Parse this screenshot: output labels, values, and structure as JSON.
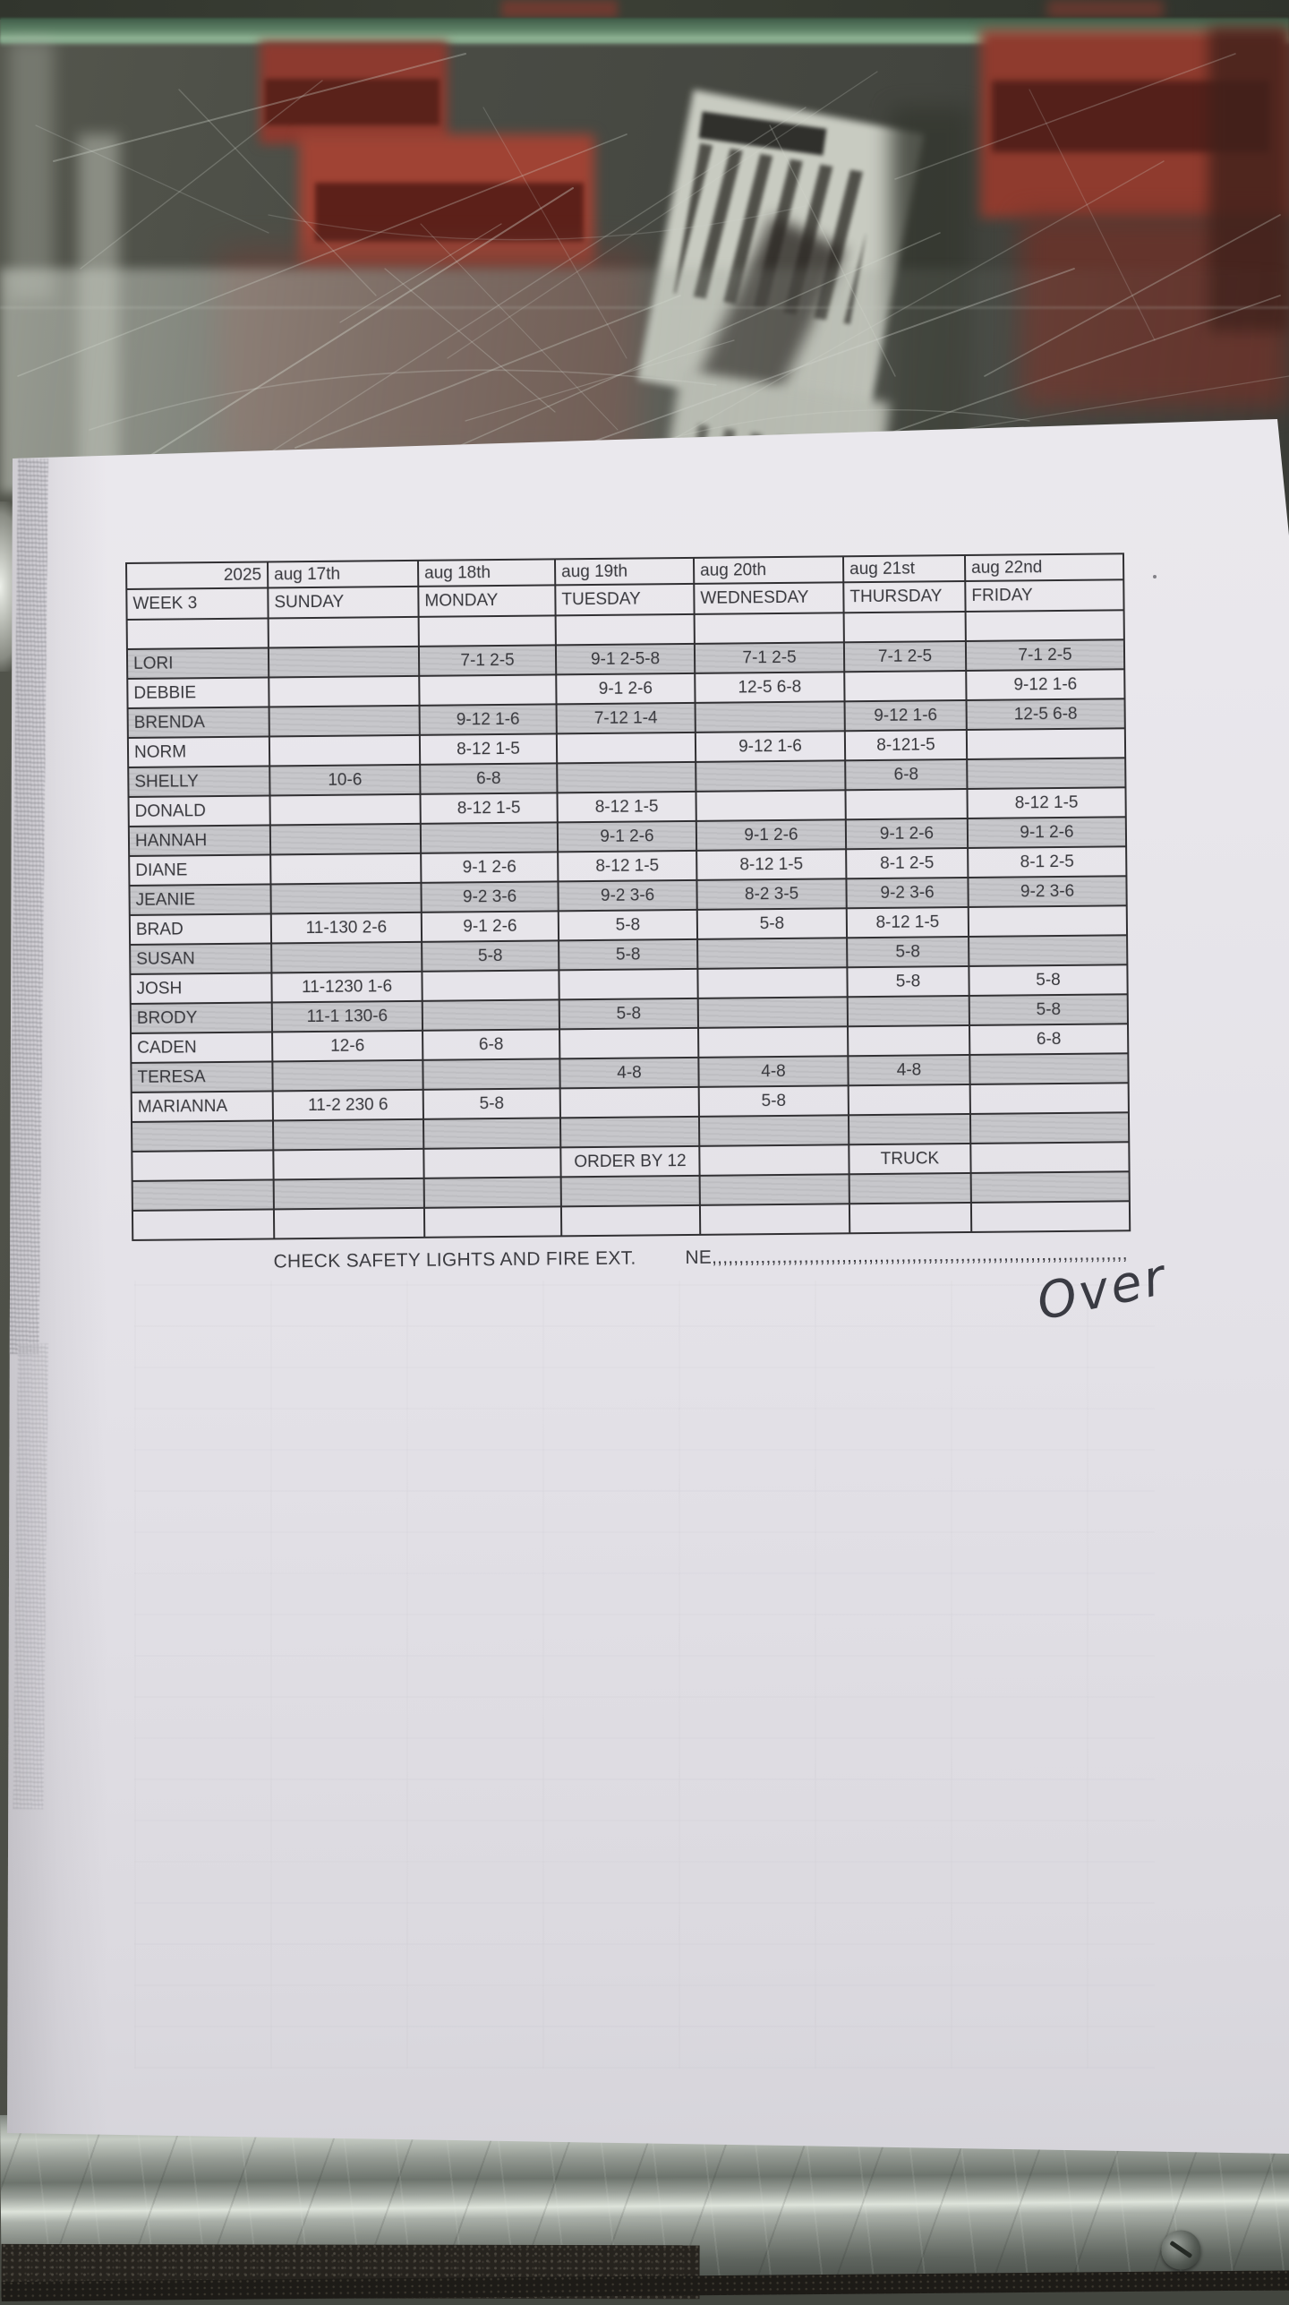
{
  "photo": {
    "handwriting": "Over",
    "colors": {
      "paper": "#e9e7ec",
      "shaded_row": "#c7c7cb",
      "red_box": "#8f3b2e",
      "glass": "#4a4c45",
      "ink": "#37373c"
    }
  },
  "table": {
    "header_row1": [
      "2025",
      "aug 17th",
      "aug 18th",
      "aug 19th",
      "aug 20th",
      "aug 21st",
      "aug 22nd"
    ],
    "header_row2": [
      "WEEK 3",
      "SUNDAY",
      "MONDAY",
      "TUESDAY",
      "WEDNESDAY",
      "THURSDAY",
      "FRIDAY"
    ],
    "rows": [
      {
        "name": "",
        "shaded": false,
        "cells": [
          "",
          "",
          "",
          "",
          "",
          ""
        ]
      },
      {
        "name": "LORI",
        "shaded": true,
        "cells": [
          "",
          "7-1 2-5",
          "9-1 2-5-8",
          "7-1 2-5",
          "7-1 2-5",
          "7-1 2-5"
        ]
      },
      {
        "name": "DEBBIE",
        "shaded": false,
        "cells": [
          "",
          "",
          "9-1 2-6",
          "12-5 6-8",
          "",
          "9-12 1-6"
        ]
      },
      {
        "name": "BRENDA",
        "shaded": true,
        "cells": [
          "",
          "9-12 1-6",
          "7-12 1-4",
          "",
          "9-12 1-6",
          "12-5 6-8"
        ]
      },
      {
        "name": "NORM",
        "shaded": false,
        "cells": [
          "",
          "8-12 1-5",
          "",
          "9-12 1-6",
          "8-121-5",
          ""
        ]
      },
      {
        "name": "SHELLY",
        "shaded": true,
        "cells": [
          "10-6",
          "6-8",
          "",
          "",
          "6-8",
          ""
        ]
      },
      {
        "name": "DONALD",
        "shaded": false,
        "cells": [
          "",
          "8-12 1-5",
          "8-12 1-5",
          "",
          "",
          "8-12 1-5"
        ]
      },
      {
        "name": "HANNAH",
        "shaded": true,
        "cells": [
          "",
          "",
          "9-1 2-6",
          "9-1 2-6",
          "9-1 2-6",
          "9-1 2-6"
        ]
      },
      {
        "name": "DIANE",
        "shaded": false,
        "cells": [
          "",
          "9-1 2-6",
          "8-12 1-5",
          "8-12 1-5",
          "8-1 2-5",
          "8-1 2-5"
        ]
      },
      {
        "name": "JEANIE",
        "shaded": true,
        "cells": [
          "",
          "9-2 3-6",
          "9-2 3-6",
          "8-2 3-5",
          "9-2 3-6",
          "9-2 3-6"
        ]
      },
      {
        "name": "BRAD",
        "shaded": false,
        "cells": [
          "11-130 2-6",
          "9-1 2-6",
          "5-8",
          "5-8",
          "8-12 1-5",
          ""
        ]
      },
      {
        "name": "SUSAN",
        "shaded": true,
        "cells": [
          "",
          "5-8",
          "5-8",
          "",
          "5-8",
          ""
        ]
      },
      {
        "name": "JOSH",
        "shaded": false,
        "cells": [
          "11-1230 1-6",
          "",
          "",
          "",
          "5-8",
          "5-8"
        ]
      },
      {
        "name": "BRODY",
        "shaded": true,
        "cells": [
          "11-1 130-6",
          "",
          "5-8",
          "",
          "",
          "5-8"
        ]
      },
      {
        "name": "CADEN",
        "shaded": false,
        "cells": [
          "12-6",
          "6-8",
          "",
          "",
          "",
          "6-8"
        ]
      },
      {
        "name": "TERESA",
        "shaded": true,
        "cells": [
          "",
          "",
          "4-8",
          "4-8",
          "4-8",
          ""
        ]
      },
      {
        "name": "MARIANNA",
        "shaded": false,
        "cells": [
          "11-2 230 6",
          "5-8",
          "",
          "5-8",
          "",
          ""
        ]
      },
      {
        "name": "",
        "shaded": true,
        "cells": [
          "",
          "",
          "",
          "",
          "",
          ""
        ]
      },
      {
        "name": "",
        "shaded": false,
        "cells": [
          "",
          "",
          "ORDER BY 12",
          "",
          "TRUCK",
          ""
        ]
      },
      {
        "name": "",
        "shaded": true,
        "cells": [
          "",
          "",
          "",
          "",
          "",
          ""
        ]
      },
      {
        "name": "",
        "shaded": false,
        "cells": [
          "",
          "",
          "",
          "",
          "",
          ""
        ]
      }
    ]
  },
  "footer": {
    "left": "CHECK SAFETY LIGHTS AND FIRE EXT.",
    "right_prefix": "NE",
    "right_dots": ",,,,,,,,,,,,,,,,,,,,,,,,,,,,,,,,,,,,,,,,,,,,,,,,,,,,,,,,,,,,,,,,,,,,,,,,,,,,,,,,"
  }
}
